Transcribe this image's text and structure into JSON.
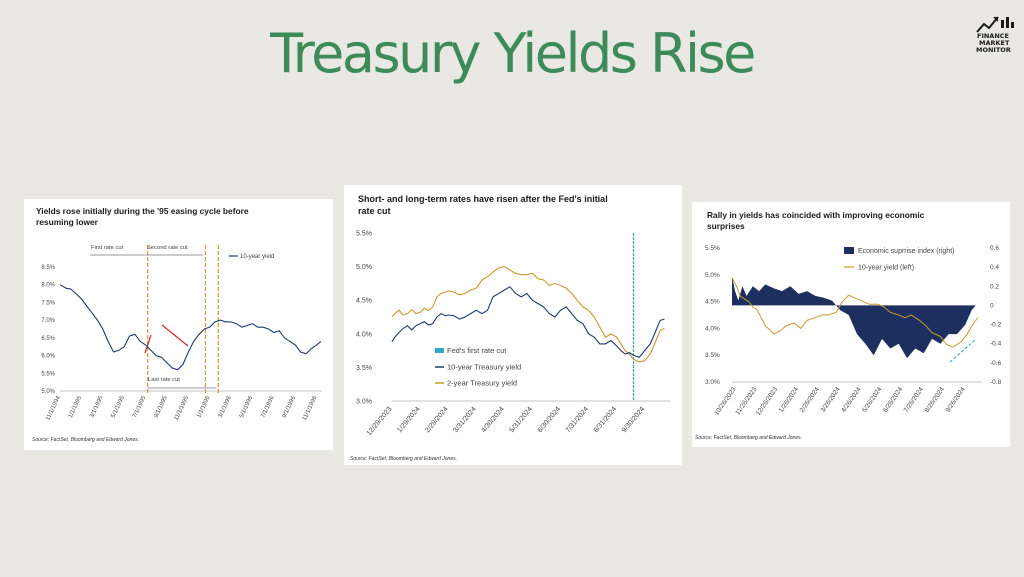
{
  "page": {
    "title": "Treasury Yields Rise"
  },
  "logo": {
    "line1": "FINANCE",
    "line2": "MARKET",
    "line3": "MONITOR"
  },
  "chart_data": [
    {
      "type": "line",
      "title": "Yields rose initially during the '95 easing cycle before resuming lower",
      "source": "Source: FactSet, Bloomberg and Edward Jones.",
      "x_tick_labels": [
        "11/1/1994",
        "1/1/1995",
        "3/1/1995",
        "5/1/1995",
        "7/1/1995",
        "9/1/1995",
        "11/1/1995",
        "1/1/1996",
        "3/1/1996",
        "5/1/1996",
        "7/1/1996",
        "9/1/1996",
        "11/1/1996"
      ],
      "y_tick_labels": [
        "5.0%",
        "5.5%",
        "6.0%",
        "6.5%",
        "7.0%",
        "7.5%",
        "8.0%",
        "8.5%"
      ],
      "ylim": [
        5.0,
        8.5
      ],
      "series": [
        {
          "name": "10-year yield",
          "color": "#1f3b6e",
          "x": [
            0,
            0.3,
            0.6,
            1,
            1.5,
            2,
            2.5,
            3,
            3.5,
            4,
            4.5,
            5,
            5.5,
            6,
            6.5,
            7,
            7.5,
            8,
            8.5,
            9,
            9.5,
            10,
            10.5,
            11,
            11.5,
            12,
            12.5,
            13,
            13.5,
            14,
            14.5,
            15,
            15.5,
            16,
            16.5,
            17,
            17.5,
            18,
            18.5,
            19,
            19.5,
            20,
            20.5,
            21,
            21.5,
            22,
            22.5,
            23,
            23.5,
            24,
            24.4
          ],
          "values": [
            8.0,
            7.95,
            7.9,
            7.88,
            7.75,
            7.6,
            7.4,
            7.2,
            7.0,
            6.75,
            6.4,
            6.1,
            6.15,
            6.25,
            6.55,
            6.6,
            6.4,
            6.3,
            6.15,
            6.0,
            5.95,
            5.8,
            5.65,
            5.6,
            5.75,
            6.1,
            6.4,
            6.6,
            6.75,
            6.8,
            6.95,
            7.0,
            6.95,
            6.95,
            6.9,
            6.8,
            6.85,
            6.9,
            6.8,
            6.8,
            6.75,
            6.65,
            6.7,
            6.5,
            6.4,
            6.3,
            6.1,
            6.05,
            6.2,
            6.3,
            6.4
          ]
        }
      ],
      "annotations": [
        {
          "label": "First rate cut",
          "month": 8.2
        },
        {
          "label": "Second rate cut",
          "month": 13.6
        },
        {
          "label": "Last rate cut",
          "month": 14.8
        }
      ]
    },
    {
      "type": "line",
      "title": "Short- and long-term rates have risen after the Fed's initial rate cut",
      "source": "Source: FactSet, Bloomberg and Edward Jones.",
      "x_tick_labels": [
        "12/29/2023",
        "1/29/2024",
        "2/29/2024",
        "3/31/2024",
        "4/30/2024",
        "5/31/2024",
        "6/30/2024",
        "7/31/2024",
        "8/31/2024",
        "9/30/2024"
      ],
      "y_tick_labels": [
        "3.0%",
        "3.5%",
        "4.0%",
        "4.5%",
        "5.0%",
        "5.5%"
      ],
      "ylim": [
        3.0,
        5.5
      ],
      "series": [
        {
          "name": "10-year Treasury yield",
          "color": "#1f3b6e",
          "x": [
            0,
            0.1,
            0.25,
            0.4,
            0.55,
            0.7,
            0.85,
            1,
            1.15,
            1.3,
            1.45,
            1.6,
            1.75,
            1.9,
            2,
            2.2,
            2.4,
            2.6,
            2.8,
            3,
            3.2,
            3.4,
            3.6,
            3.8,
            4,
            4.2,
            4.4,
            4.6,
            4.8,
            5,
            5.2,
            5.4,
            5.6,
            5.8,
            6,
            6.2,
            6.4,
            6.6,
            6.8,
            7,
            7.2,
            7.4,
            7.6,
            7.8,
            8,
            8.15,
            8.3,
            8.45,
            8.6,
            8.8,
            9,
            9.2,
            9.4,
            9.55,
            9.7
          ],
          "values": [
            3.88,
            3.95,
            4.02,
            4.08,
            4.12,
            4.06,
            4.12,
            4.15,
            4.18,
            4.13,
            4.15,
            4.25,
            4.3,
            4.27,
            4.28,
            4.27,
            4.22,
            4.25,
            4.3,
            4.35,
            4.3,
            4.35,
            4.55,
            4.6,
            4.65,
            4.7,
            4.6,
            4.55,
            4.6,
            4.5,
            4.45,
            4.4,
            4.3,
            4.25,
            4.35,
            4.4,
            4.3,
            4.2,
            4.15,
            4.0,
            3.95,
            3.85,
            3.85,
            3.9,
            3.82,
            3.75,
            3.7,
            3.72,
            3.68,
            3.65,
            3.75,
            3.85,
            4.05,
            4.2,
            4.22
          ]
        },
        {
          "name": "2-year Treasury yield",
          "color": "#c89a2e",
          "x": [
            0,
            0.1,
            0.25,
            0.4,
            0.55,
            0.7,
            0.85,
            1,
            1.15,
            1.3,
            1.45,
            1.6,
            1.75,
            1.9,
            2,
            2.2,
            2.4,
            2.6,
            2.8,
            3,
            3.2,
            3.4,
            3.6,
            3.8,
            4,
            4.2,
            4.4,
            4.6,
            4.8,
            5,
            5.2,
            5.4,
            5.6,
            5.8,
            6,
            6.2,
            6.4,
            6.6,
            6.8,
            7,
            7.2,
            7.4,
            7.6,
            7.8,
            8,
            8.15,
            8.3,
            8.45,
            8.6,
            8.8,
            9,
            9.2,
            9.4,
            9.55,
            9.7
          ],
          "values": [
            4.25,
            4.3,
            4.35,
            4.28,
            4.3,
            4.36,
            4.3,
            4.32,
            4.38,
            4.35,
            4.4,
            4.55,
            4.6,
            4.62,
            4.64,
            4.62,
            4.58,
            4.6,
            4.65,
            4.68,
            4.8,
            4.85,
            4.92,
            4.98,
            5.0,
            4.95,
            4.9,
            4.88,
            4.88,
            4.9,
            4.82,
            4.8,
            4.72,
            4.75,
            4.72,
            4.68,
            4.6,
            4.5,
            4.4,
            4.35,
            4.25,
            4.1,
            3.95,
            4.0,
            3.95,
            3.85,
            3.75,
            3.7,
            3.62,
            3.58,
            3.6,
            3.7,
            3.9,
            4.05,
            4.08
          ]
        }
      ],
      "markers": [
        {
          "name": "Fed's first rate cut",
          "color": "#31a9c7",
          "month": 8.6
        }
      ],
      "legend": [
        "Fed's first rate cut",
        "10-year Treasury yield",
        "2-year Treasury yield"
      ]
    },
    {
      "type": "area+line",
      "title": "Rally in yields has coincided with improving economic surprises",
      "source": "Source: FactSet, Bloomberg and Edward Jones.",
      "x_tick_labels": [
        "10/26/2023",
        "11/26/2023",
        "12/26/2023",
        "1/26/2024",
        "2/26/2024",
        "3/26/2024",
        "4/26/2024",
        "5/26/2024",
        "6/26/2024",
        "7/26/2024",
        "8/26/2024",
        "9/26/2024"
      ],
      "y_left_tick_labels": [
        "3.0%",
        "3.5%",
        "4.0%",
        "4.5%",
        "5.0%",
        "5.5%"
      ],
      "y_right_tick_labels": [
        "-0.8",
        "-0.6",
        "-0.4",
        "-0.2",
        "0",
        "0.2",
        "0.4",
        "0.6"
      ],
      "ylim_left": [
        3.0,
        5.5
      ],
      "ylim_right": [
        -0.8,
        0.6
      ],
      "series": [
        {
          "name": "Economic suprrise index (right)",
          "color": "#1d2f5e",
          "x": [
            0,
            0.15,
            0.3,
            0.5,
            0.7,
            1,
            1.3,
            1.6,
            2,
            2.4,
            2.8,
            3.2,
            3.6,
            4,
            4.4,
            4.8,
            5.2,
            5.6,
            6,
            6.4,
            6.8,
            7.2,
            7.6,
            8,
            8.4,
            8.8,
            9.2,
            9.6,
            10,
            10.4,
            10.8,
            11.2,
            11.5,
            11.7
          ],
          "values": [
            0.3,
            0.15,
            0.05,
            0.2,
            0.1,
            0.2,
            0.15,
            0.22,
            0.18,
            0.15,
            0.2,
            0.12,
            0.15,
            0.1,
            0.08,
            0.05,
            -0.05,
            -0.1,
            -0.3,
            -0.4,
            -0.52,
            -0.35,
            -0.45,
            -0.4,
            -0.55,
            -0.45,
            -0.5,
            -0.35,
            -0.4,
            -0.3,
            -0.3,
            -0.2,
            -0.05,
            0
          ]
        },
        {
          "name": "10-year yield (left)",
          "color": "#c89a2e",
          "x": [
            0,
            0.2,
            0.4,
            0.6,
            0.8,
            1,
            1.2,
            1.4,
            1.6,
            1.8,
            2,
            2.3,
            2.6,
            3,
            3.3,
            3.6,
            4,
            4.3,
            4.6,
            5,
            5.3,
            5.6,
            6,
            6.3,
            6.6,
            7,
            7.3,
            7.6,
            8,
            8.3,
            8.6,
            9,
            9.3,
            9.6,
            10,
            10.3,
            10.6,
            11,
            11.3,
            11.6,
            11.8
          ],
          "values": [
            4.95,
            4.8,
            4.6,
            4.55,
            4.5,
            4.4,
            4.35,
            4.2,
            4.05,
            3.98,
            3.9,
            3.95,
            4.05,
            4.1,
            4.0,
            4.15,
            4.2,
            4.25,
            4.25,
            4.3,
            4.5,
            4.62,
            4.55,
            4.5,
            4.45,
            4.45,
            4.4,
            4.3,
            4.25,
            4.2,
            4.25,
            4.15,
            4.05,
            3.92,
            3.85,
            3.7,
            3.65,
            3.75,
            3.9,
            4.1,
            4.2
          ]
        }
      ],
      "legend": [
        "Economic suprrise index (right)",
        "10-year yield (left)"
      ]
    }
  ]
}
